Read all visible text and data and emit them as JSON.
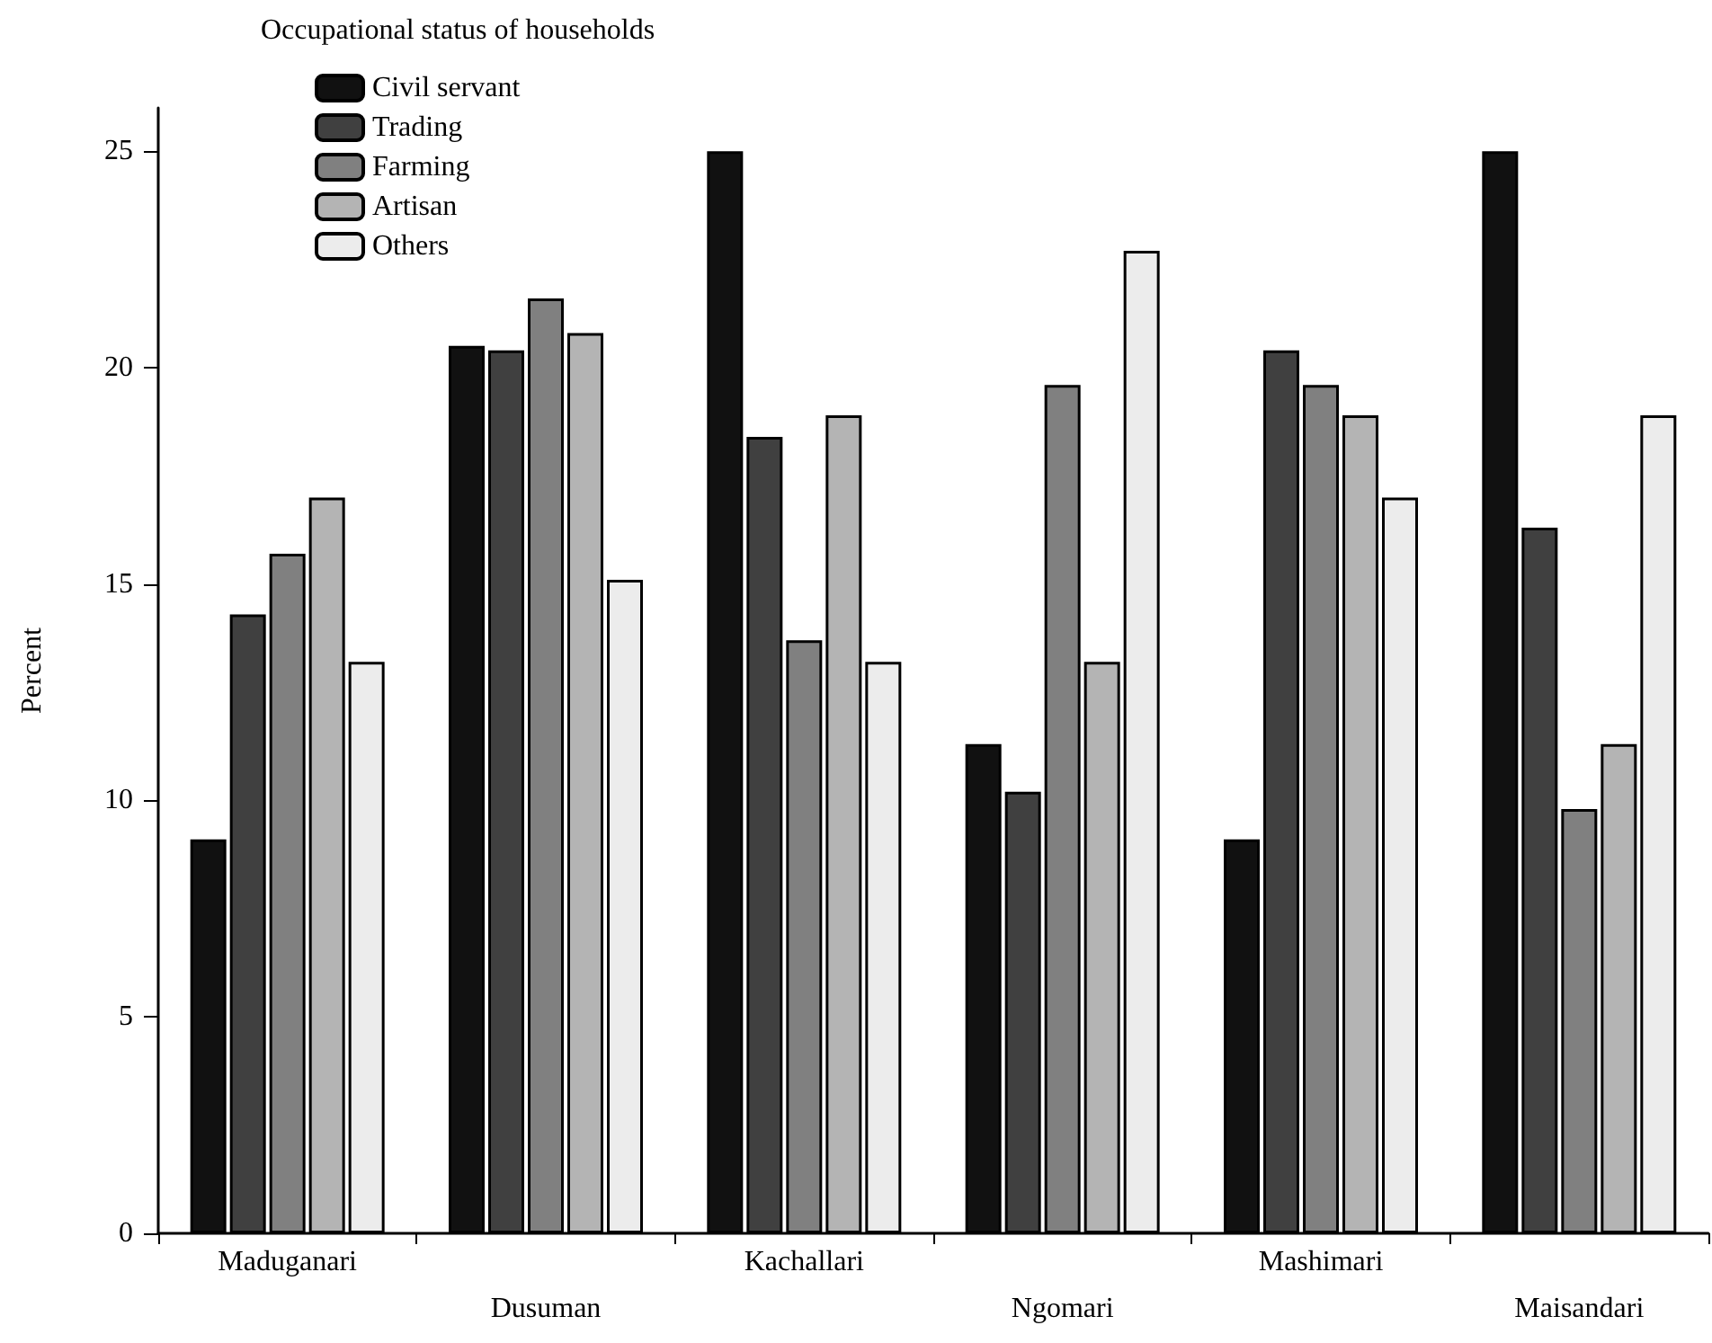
{
  "chart_data": {
    "type": "bar",
    "legend_title": "Occupational status of households",
    "ylabel": "Percent",
    "categories": [
      "Maduganari",
      "Dusuman",
      "Kachallari",
      "Ngomari",
      "Mashimari",
      "Maisandari"
    ],
    "series": [
      {
        "name": "Civil servant",
        "color": "#111111",
        "values": [
          9.1,
          20.5,
          25.0,
          11.3,
          9.1,
          25.0
        ]
      },
      {
        "name": "Trading",
        "color": "#404040",
        "values": [
          14.3,
          20.4,
          18.4,
          10.2,
          20.4,
          16.3
        ]
      },
      {
        "name": "Farming",
        "color": "#808080",
        "values": [
          15.7,
          21.6,
          13.7,
          19.6,
          19.6,
          9.8
        ]
      },
      {
        "name": "Artisan",
        "color": "#b4b4b4",
        "values": [
          17.0,
          20.8,
          18.9,
          13.2,
          18.9,
          11.3
        ]
      },
      {
        "name": "Others",
        "color": "#ececec",
        "values": [
          13.2,
          15.1,
          13.2,
          22.7,
          17.0,
          18.9
        ]
      }
    ],
    "ylim": [
      0,
      26
    ],
    "yticks": [
      0,
      5,
      10,
      15,
      20,
      25
    ],
    "grid": false,
    "legend": "top left"
  }
}
